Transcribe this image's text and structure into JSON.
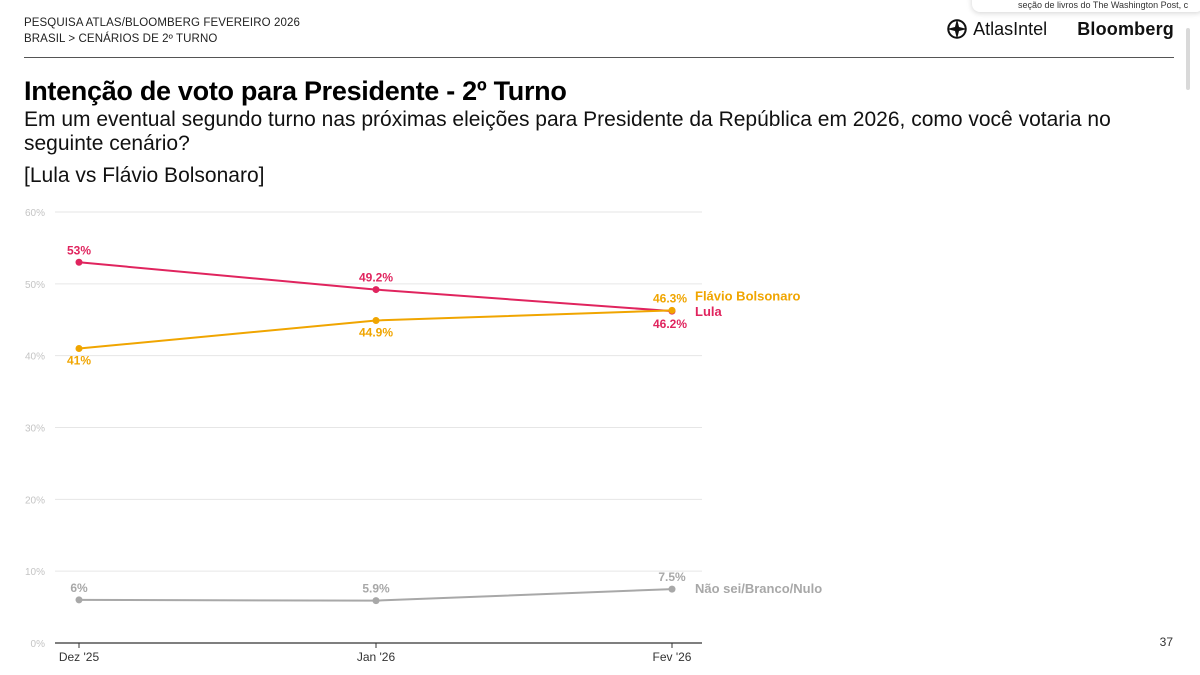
{
  "header": {
    "line1": "PESQUISA ATLAS/BLOOMBERG FEVEREIRO 2026",
    "crumb_root": "BRASIL",
    "crumb_sep": ">",
    "crumb_current": "CENÁRIOS DE 2º TURNO",
    "brand_atlas": "AtlasIntel",
    "brand_bloomberg": "Bloomberg",
    "popup_text": "seção de livros do The Washington Post, c"
  },
  "page_number": "37",
  "colors": {
    "lula": "#e0245e",
    "flavio": "#f0a500",
    "nsbn": "#a8a8a8",
    "grid": "#e6e6e6",
    "tick": "#c4c4c4"
  },
  "chart_data": {
    "type": "line",
    "title": "Intenção de voto para Presidente - 2º Turno",
    "subtitle": "Em um eventual segundo turno nas próximas eleições para Presidente da República em 2026, como você votaria no seguinte cenário?",
    "scenario": "[Lula vs Flávio Bolsonaro]",
    "categories": [
      "Dez '25",
      "Jan '26",
      "Fev '26"
    ],
    "ylim": [
      0,
      60
    ],
    "yticks": [
      "0%",
      "10%",
      "20%",
      "30%",
      "40%",
      "50%",
      "60%"
    ],
    "grid": true,
    "series": [
      {
        "name": "Lula",
        "values": [
          53,
          49.2,
          46.2
        ],
        "labels": [
          "53%",
          "49.2%",
          "46.2%"
        ],
        "color": "#e0245e"
      },
      {
        "name": "Flávio Bolsonaro",
        "values": [
          41,
          44.9,
          46.3
        ],
        "labels": [
          "41%",
          "44.9%",
          "46.3%"
        ],
        "color": "#f0a500"
      },
      {
        "name": "Não sei/Branco/Nulo",
        "values": [
          6,
          5.9,
          7.5
        ],
        "labels": [
          "6%",
          "5.9%",
          "7.5%"
        ],
        "color": "#a8a8a8"
      }
    ]
  }
}
